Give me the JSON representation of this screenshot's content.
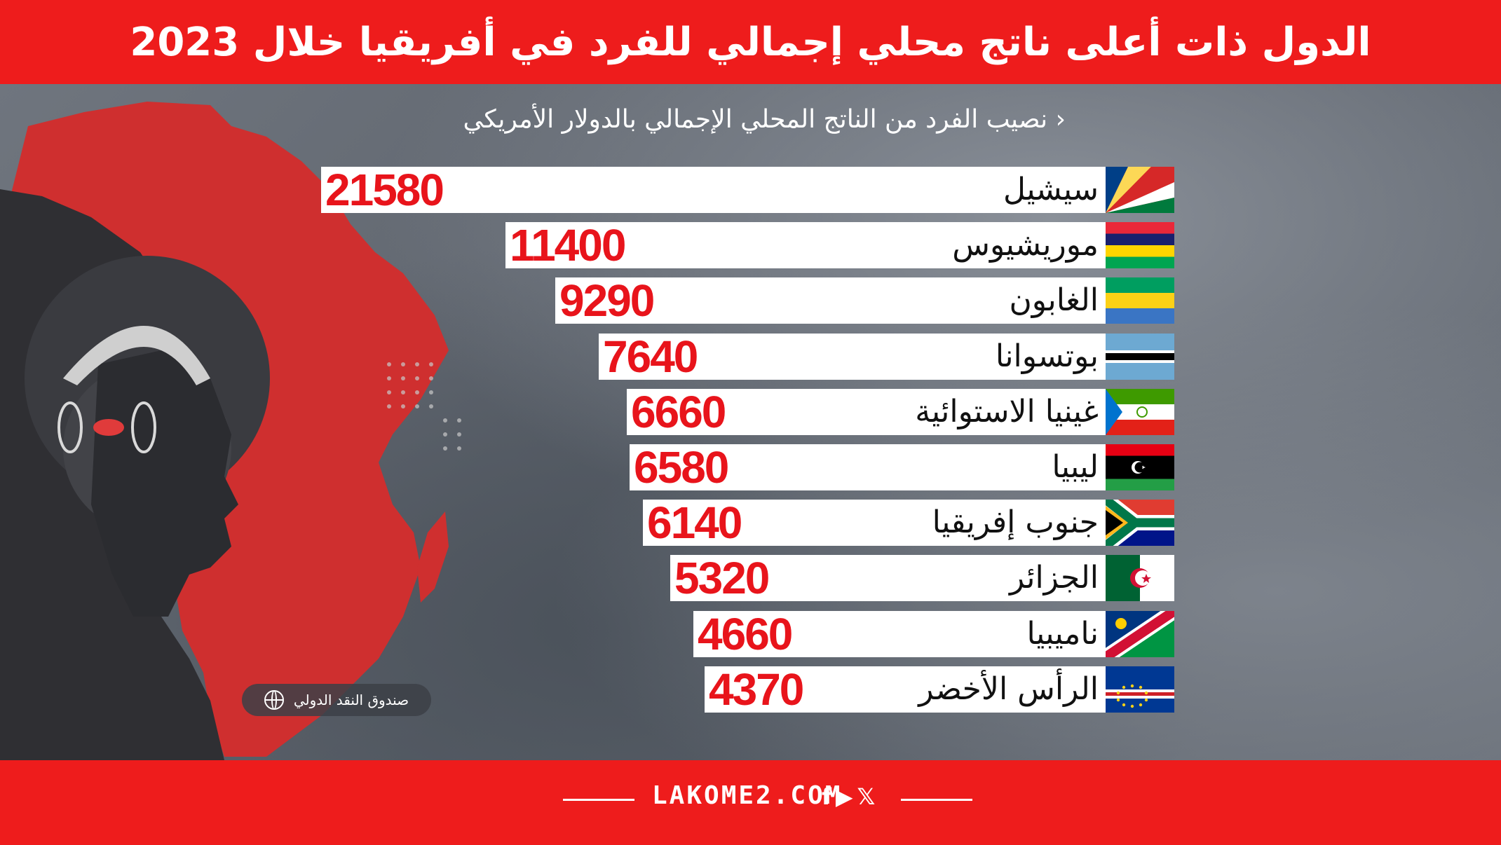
{
  "title": "الدول ذات أعلى ناتج محلي إجمالي للفرد في أفريقيا خلال 2023",
  "subtitle": "‹ نصيب الفرد من الناتج المحلي الإجمالي بالدولار الأمريكي",
  "source": "صندوق النقد الدولي",
  "footer": {
    "site": "LAKOME2.COM",
    "social": [
      "f",
      "▶",
      "𝕏"
    ]
  },
  "colors": {
    "header": "#ee1c1c",
    "value": "#e8141b",
    "bar": "#ffffff"
  },
  "chart_data": {
    "type": "bar",
    "orientation": "horizontal",
    "title": "الدول ذات أعلى ناتج محلي إجمالي للفرد في أفريقيا خلال 2023",
    "subtitle": "نصيب الفرد من الناتج المحلي الإجمالي بالدولار الأمريكي",
    "categories": [
      "سيشيل",
      "موريشيوس",
      "الغابون",
      "بوتسوانا",
      "غينيا الاستوائية",
      "ليبيا",
      "جنوب إفريقيا",
      "الجزائر",
      "ناميبيا",
      "الرأس الأخضر"
    ],
    "values": [
      21580,
      11400,
      9290,
      7640,
      6660,
      6580,
      6140,
      5320,
      4660,
      4370
    ],
    "flags": [
      "seychelles-flag-icon",
      "mauritius-flag-icon",
      "gabon-flag-icon",
      "botswana-flag-icon",
      "equatorial-guinea-flag-icon",
      "libya-flag-icon",
      "south-africa-flag-icon",
      "algeria-flag-icon",
      "namibia-flag-icon",
      "cape-verde-flag-icon"
    ]
  }
}
